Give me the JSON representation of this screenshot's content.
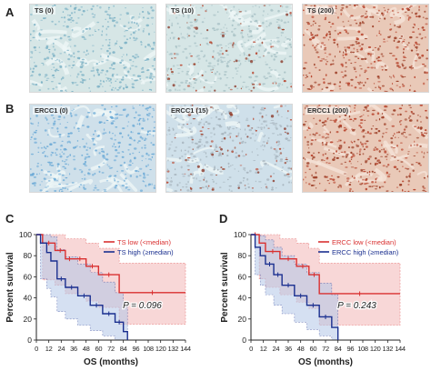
{
  "figure": {
    "panels": {
      "A": "A",
      "B": "B",
      "C": "C",
      "D": "D"
    },
    "micrographs": {
      "row_a": [
        {
          "label": "TS (0)",
          "stain": "#7fb3c6",
          "level": 0
        },
        {
          "label": "TS (10)",
          "stain": "#a9c2c6",
          "level": 0.15
        },
        {
          "label": "TS (200)",
          "stain": "#c8553d",
          "level": 1
        }
      ],
      "row_b": [
        {
          "label": "ERCC1 (0)",
          "stain": "#6aa9d6",
          "level": 0
        },
        {
          "label": "ERCC1 (15)",
          "stain": "#a7b4bd",
          "level": 0.2
        },
        {
          "label": "ERCC1 (200)",
          "stain": "#c44a34",
          "level": 1
        }
      ]
    }
  },
  "chart_data": [
    {
      "type": "line",
      "panel": "C",
      "xlabel": "OS (months)",
      "ylabel": "Percent survival",
      "xlim": [
        0,
        144
      ],
      "ylim": [
        0,
        100
      ],
      "xticks": [
        "0",
        "12",
        "24",
        "36",
        "48",
        "60",
        "72",
        "84",
        "96",
        "108",
        "120",
        "132",
        "144"
      ],
      "yticks": [
        "0",
        "20",
        "40",
        "60",
        "80",
        "100"
      ],
      "annotation": "P = 0.096",
      "legend": "top-right",
      "series": [
        {
          "name": "TS low (<median)",
          "color": "#d93030",
          "fill": "#f4b8b8",
          "x": [
            0,
            6,
            6,
            18,
            18,
            28,
            28,
            36,
            36,
            48,
            48,
            60,
            60,
            80,
            80,
            144
          ],
          "y": [
            100,
            100,
            92,
            92,
            85,
            85,
            77,
            77,
            77,
            77,
            70,
            70,
            62,
            62,
            45,
            45
          ],
          "upper": [
            100,
            100,
            100,
            100,
            100,
            100,
            96,
            96,
            96,
            96,
            92,
            92,
            87,
            87,
            73,
            73
          ],
          "lower": [
            100,
            100,
            57,
            57,
            52,
            52,
            44,
            44,
            44,
            44,
            37,
            37,
            31,
            31,
            15,
            15
          ]
        },
        {
          "name": "TS high (≥median)",
          "color": "#1a2f8f",
          "fill": "#b3c7e8",
          "x": [
            0,
            4,
            4,
            10,
            10,
            14,
            14,
            20,
            20,
            28,
            28,
            40,
            40,
            52,
            52,
            64,
            64,
            76,
            76,
            84,
            84,
            88,
            88
          ],
          "y": [
            100,
            100,
            92,
            92,
            83,
            83,
            75,
            75,
            58,
            58,
            50,
            50,
            42,
            42,
            33,
            33,
            25,
            25,
            17,
            17,
            8,
            8,
            0
          ],
          "upper": [
            100,
            100,
            100,
            100,
            100,
            100,
            98,
            98,
            86,
            86,
            79,
            79,
            72,
            72,
            64,
            64,
            55,
            55,
            45,
            45,
            35,
            35,
            35
          ],
          "lower": [
            100,
            100,
            58,
            58,
            49,
            49,
            41,
            41,
            27,
            27,
            20,
            20,
            14,
            14,
            9,
            9,
            4,
            4,
            0,
            0,
            0,
            0,
            0
          ]
        }
      ]
    },
    {
      "type": "line",
      "panel": "D",
      "xlabel": "OS (months)",
      "ylabel": "Percent survival",
      "xlim": [
        0,
        144
      ],
      "ylim": [
        0,
        100
      ],
      "xticks": [
        "0",
        "12",
        "24",
        "36",
        "48",
        "60",
        "72",
        "84",
        "96",
        "108",
        "120",
        "132",
        "144"
      ],
      "yticks": [
        "0",
        "20",
        "40",
        "60",
        "80",
        "100"
      ],
      "annotation": "P = 0.243",
      "legend": "top-right",
      "series": [
        {
          "name": "ERCC low (<median)",
          "color": "#d93030",
          "fill": "#f4b8b8",
          "x": [
            0,
            8,
            8,
            14,
            14,
            28,
            28,
            44,
            44,
            56,
            56,
            66,
            66,
            144
          ],
          "y": [
            100,
            100,
            92,
            92,
            84,
            84,
            77,
            77,
            70,
            70,
            62,
            62,
            44,
            44
          ],
          "upper": [
            100,
            100,
            100,
            100,
            100,
            100,
            96,
            96,
            92,
            92,
            87,
            87,
            73,
            73
          ],
          "lower": [
            100,
            100,
            58,
            58,
            50,
            50,
            43,
            43,
            36,
            36,
            30,
            30,
            14,
            14
          ]
        },
        {
          "name": "ERCC high (≥median)",
          "color": "#1a2f8f",
          "fill": "#b3c7e8",
          "x": [
            0,
            4,
            4,
            9,
            9,
            14,
            14,
            22,
            22,
            30,
            30,
            42,
            42,
            54,
            54,
            66,
            66,
            78,
            78,
            84,
            84
          ],
          "y": [
            100,
            100,
            88,
            88,
            80,
            80,
            72,
            72,
            62,
            62,
            52,
            52,
            42,
            42,
            33,
            33,
            22,
            22,
            12,
            12,
            0
          ],
          "upper": [
            100,
            100,
            100,
            100,
            99,
            99,
            95,
            95,
            88,
            88,
            80,
            80,
            72,
            72,
            64,
            64,
            54,
            54,
            43,
            43,
            43
          ],
          "lower": [
            100,
            100,
            62,
            62,
            52,
            52,
            43,
            43,
            33,
            33,
            25,
            25,
            17,
            17,
            10,
            10,
            4,
            4,
            0,
            0,
            0
          ]
        }
      ]
    }
  ]
}
